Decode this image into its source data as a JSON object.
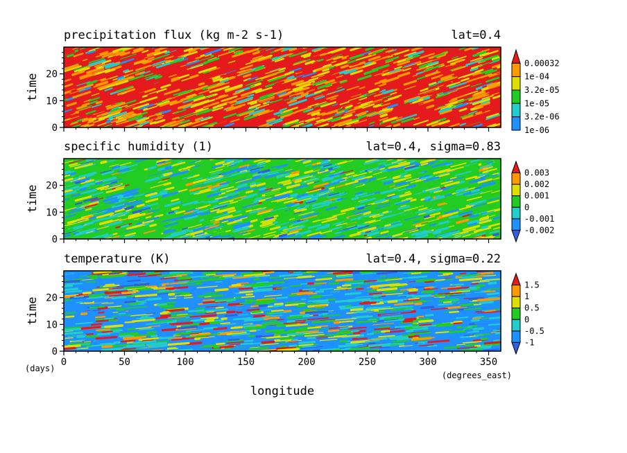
{
  "chart_data": [
    {
      "type": "heatmap",
      "title": "precipitation flux (kg m-2 s-1)",
      "subtitle": "lat=0.4",
      "ylabel": "time",
      "xlim": [
        0,
        360
      ],
      "ylim": [
        0,
        30
      ],
      "xticks": [
        0,
        50,
        100,
        150,
        200,
        250,
        300,
        350
      ],
      "yticks": [
        0,
        10,
        20
      ],
      "colorbar": {
        "labels": [
          "0.00032",
          "1e-04",
          "3.2e-05",
          "1e-05",
          "3.2e-06",
          "1e-06"
        ],
        "colors": [
          "#e41a1c",
          "#ff9900",
          "#e0e000",
          "#22cc22",
          "#22cccc",
          "#1e90ff"
        ],
        "scale": "log"
      },
      "weights": [
        0.36,
        0.26,
        0.17,
        0.11,
        0.07,
        0.03
      ]
    },
    {
      "type": "heatmap",
      "title": "specific humidity (1)",
      "subtitle": "lat=0.4, sigma=0.83",
      "ylabel": "time",
      "xlim": [
        0,
        360
      ],
      "ylim": [
        0,
        30
      ],
      "xticks": [
        0,
        50,
        100,
        150,
        200,
        250,
        300,
        350
      ],
      "yticks": [
        0,
        10,
        20
      ],
      "colorbar": {
        "labels": [
          "0.003",
          "0.002",
          "0.001",
          "0",
          "-0.001",
          "-0.002"
        ],
        "colors": [
          "#e41a1c",
          "#ff9900",
          "#e0e000",
          "#22cc22",
          "#22cccc",
          "#1e90ff",
          "#3060e0"
        ]
      },
      "weights": [
        0.01,
        0.03,
        0.22,
        0.34,
        0.22,
        0.15,
        0.03
      ]
    },
    {
      "type": "heatmap",
      "title": "temperature (K)",
      "subtitle": "lat=0.4, sigma=0.22",
      "ylabel": "time",
      "xlabel": "longitude",
      "x_unit": "(degrees_east)",
      "y_unit": "(days)",
      "xlim": [
        0,
        360
      ],
      "ylim": [
        0,
        30
      ],
      "xticks": [
        0,
        50,
        100,
        150,
        200,
        250,
        300,
        350
      ],
      "yticks": [
        0,
        10,
        20
      ],
      "colorbar": {
        "labels": [
          "1.5",
          "1",
          "0.5",
          "0",
          "-0.5",
          "-1"
        ],
        "colors": [
          "#e41a1c",
          "#ff9900",
          "#e0e000",
          "#22cc22",
          "#22cccc",
          "#1e90ff",
          "#3060e0"
        ]
      },
      "weights": [
        0.08,
        0.06,
        0.12,
        0.18,
        0.18,
        0.34,
        0.04
      ]
    }
  ]
}
